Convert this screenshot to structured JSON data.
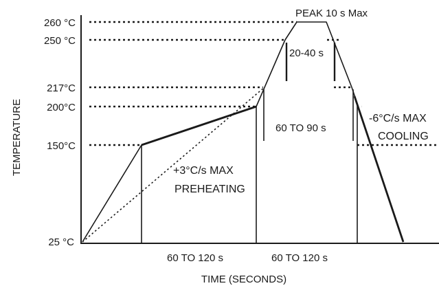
{
  "diagram": {
    "y_axis_title": "TEMPERATURE",
    "x_axis_title": "TIME (SECONDS)",
    "temperature_ticks": [
      "260 °C",
      "250 °C",
      "217°C",
      "200°C",
      "150°C",
      "25 °C"
    ],
    "annotations": {
      "peak": "PEAK 10 s Max",
      "time_above_250": "20-40 s",
      "time_above_217": "60 TO 90 s",
      "preheat_rate_line1": "+3°C/s MAX",
      "preheat_rate_line2": "PREHEATING",
      "cooling_rate_line1": "-6°C/s MAX",
      "cooling_rate_line2": "COOLING",
      "preheat_duration": "60 TO 120 s",
      "soak_duration": "60 TO 120 s"
    }
  }
}
